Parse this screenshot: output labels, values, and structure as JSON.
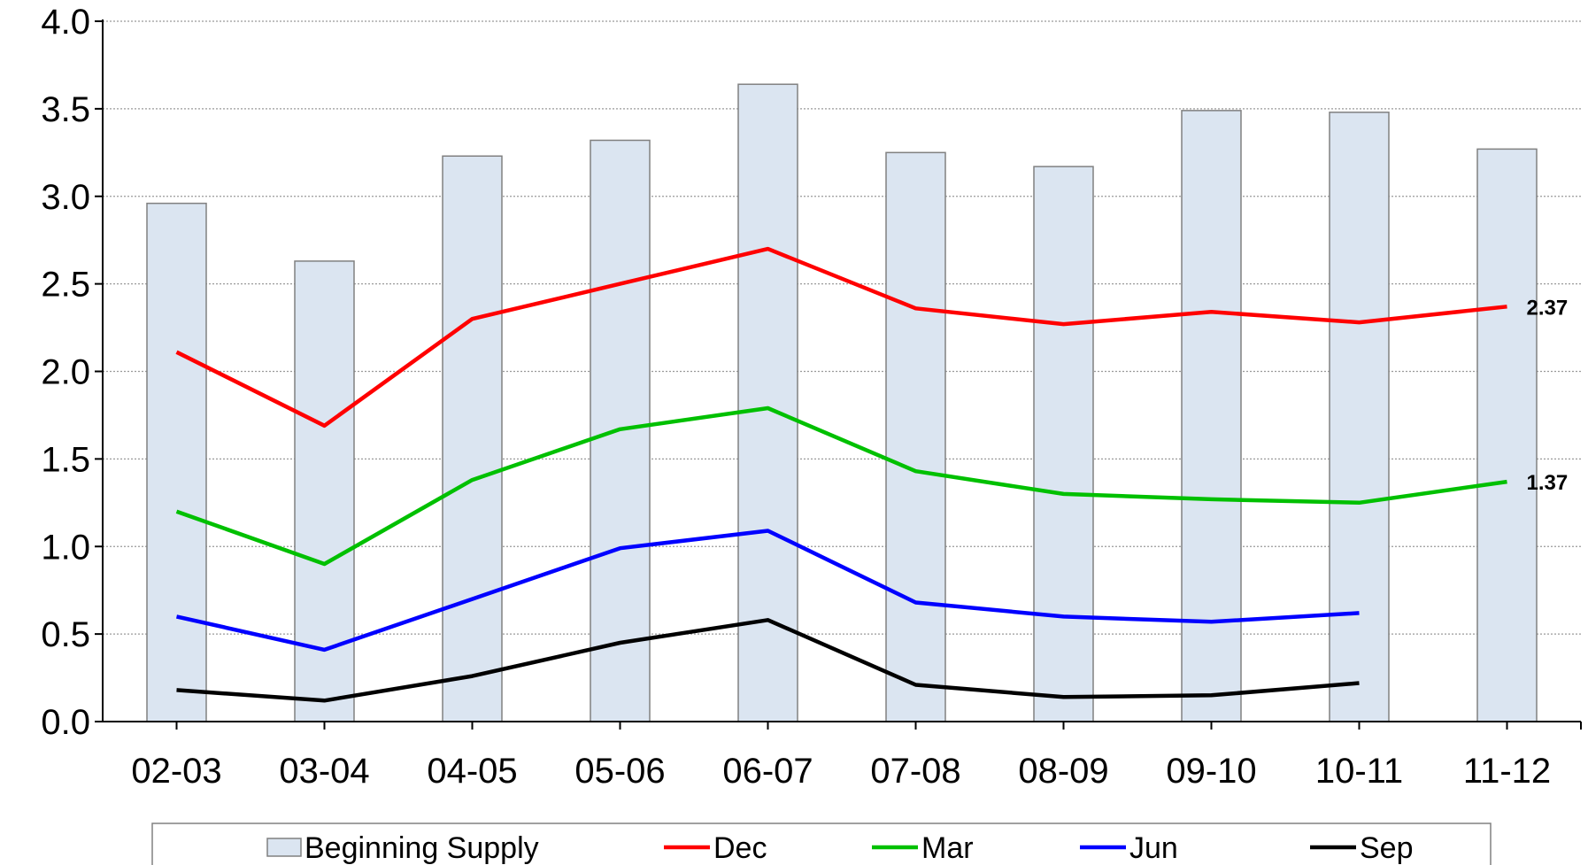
{
  "chart_data": {
    "type": "bar",
    "title": "",
    "xlabel": "",
    "ylabel": "",
    "categories": [
      "02-03",
      "03-04",
      "04-05",
      "05-06",
      "06-07",
      "07-08",
      "08-09",
      "09-10",
      "10-11",
      "11-12"
    ],
    "ylim": [
      0.0,
      4.0
    ],
    "yticks": [
      "0.0",
      "0.5",
      "1.0",
      "1.5",
      "2.0",
      "2.5",
      "3.0",
      "3.5",
      "4.0"
    ],
    "grid": "horizontal dotted",
    "legend_position": "bottom",
    "bar_series": {
      "name": "Beginning Supply",
      "color": "#dbe5f1",
      "values": [
        2.96,
        2.63,
        3.23,
        3.32,
        3.64,
        3.25,
        3.17,
        3.49,
        3.48,
        3.27
      ]
    },
    "series": [
      {
        "name": "Dec",
        "color": "#ff0000",
        "values": [
          2.11,
          1.69,
          2.3,
          2.5,
          2.7,
          2.36,
          2.27,
          2.34,
          2.28,
          2.37
        ]
      },
      {
        "name": "Mar",
        "color": "#00c000",
        "values": [
          1.2,
          0.9,
          1.38,
          1.67,
          1.79,
          1.43,
          1.3,
          1.27,
          1.25,
          1.37
        ]
      },
      {
        "name": "Jun",
        "color": "#0000ff",
        "values": [
          0.6,
          0.41,
          0.7,
          0.99,
          1.09,
          0.68,
          0.6,
          0.57,
          0.62,
          null
        ]
      },
      {
        "name": "Sep",
        "color": "#000000",
        "values": [
          0.18,
          0.12,
          0.26,
          0.45,
          0.58,
          0.21,
          0.14,
          0.15,
          0.22,
          null
        ]
      }
    ],
    "annotations": [
      {
        "series": "Dec",
        "category": "11-12",
        "text": "2.37"
      },
      {
        "series": "Mar",
        "category": "11-12",
        "text": "1.37"
      }
    ]
  }
}
